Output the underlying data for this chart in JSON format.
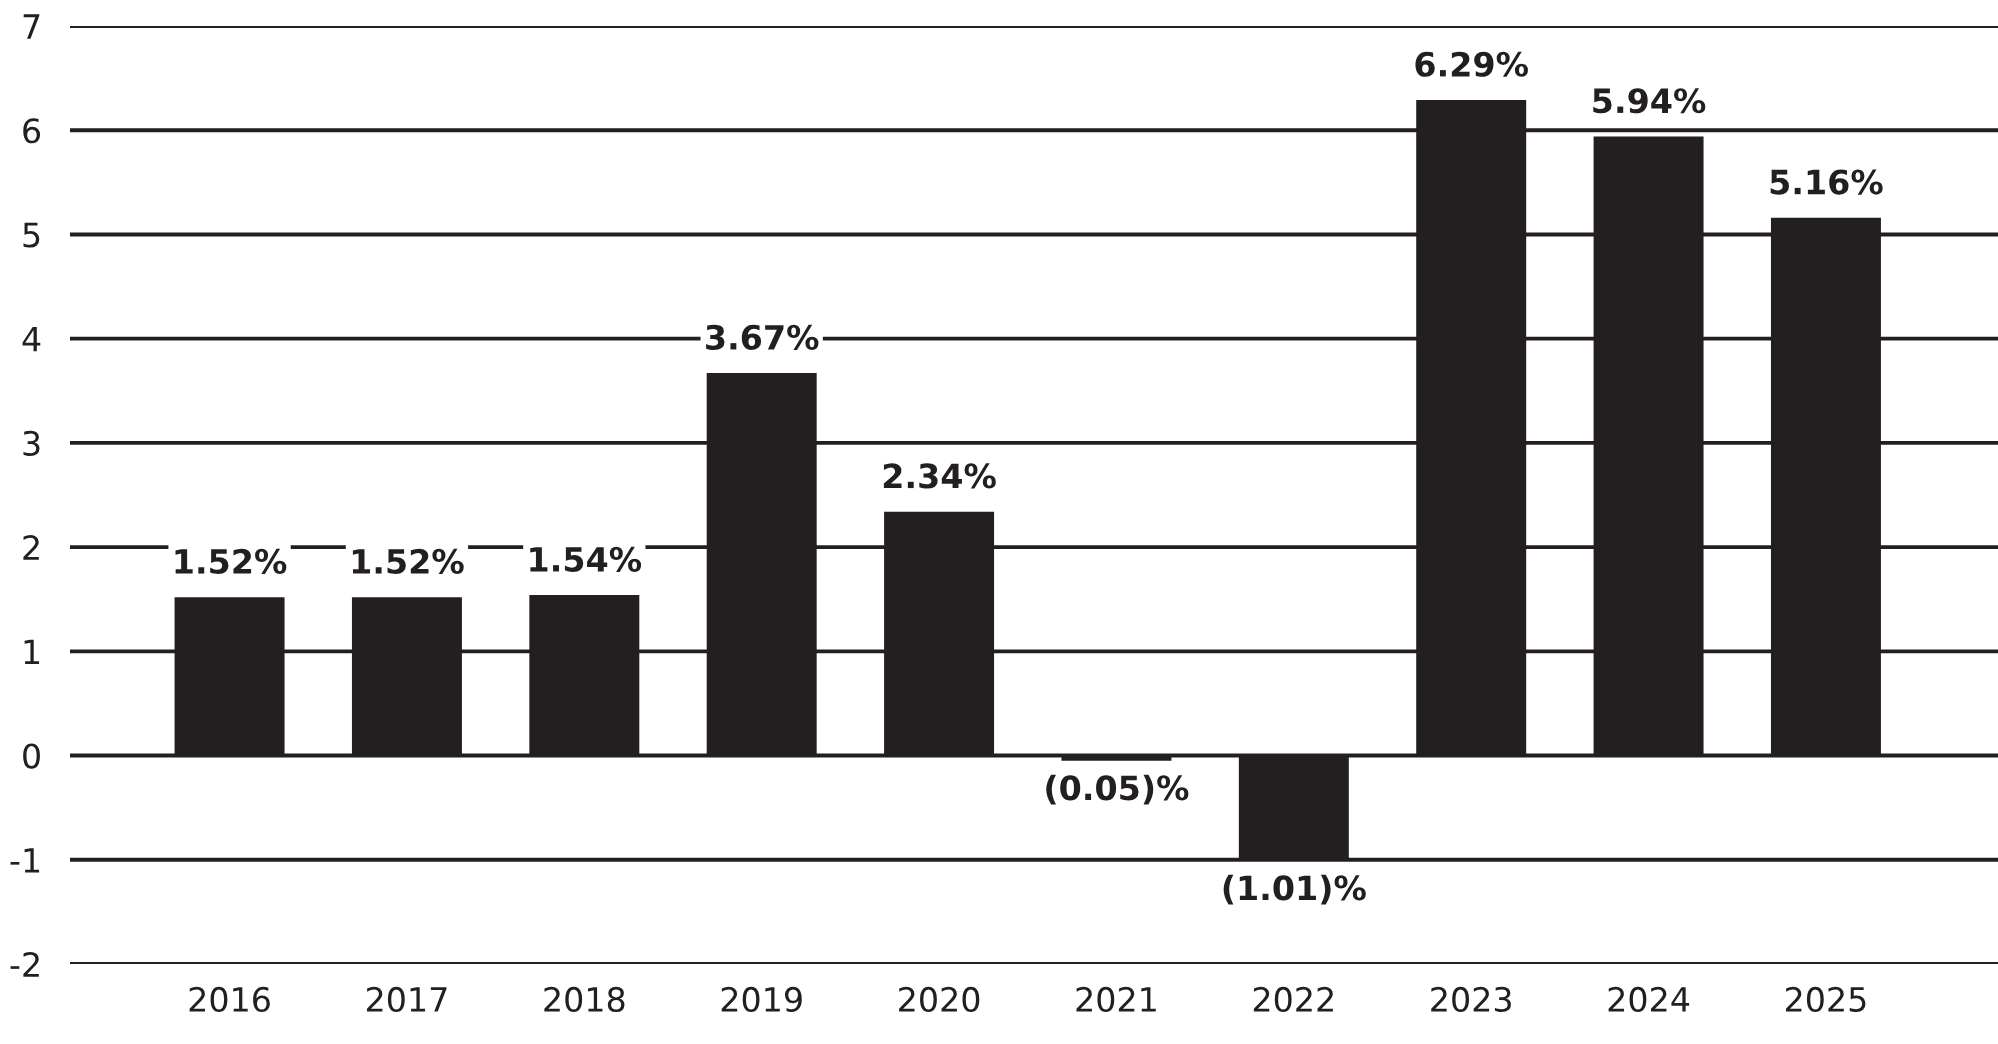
{
  "chart_data": {
    "type": "bar",
    "categories": [
      "2016",
      "2017",
      "2018",
      "2019",
      "2020",
      "2021",
      "2022",
      "2023",
      "2024",
      "2025"
    ],
    "values": [
      1.52,
      1.52,
      1.54,
      3.67,
      2.34,
      -0.05,
      -1.01,
      6.29,
      5.94,
      5.16
    ],
    "value_labels": [
      "1.52%",
      "1.52%",
      "1.54%",
      "3.67%",
      "2.34%",
      "(0.05)%",
      "(1.01)%",
      "6.29%",
      "5.94%",
      "5.16%"
    ],
    "color": "#231f20",
    "ylim": [
      -2,
      7
    ],
    "yticks": [
      -2,
      -1,
      0,
      1,
      2,
      3,
      4,
      5,
      6,
      7
    ],
    "grid": "y"
  }
}
